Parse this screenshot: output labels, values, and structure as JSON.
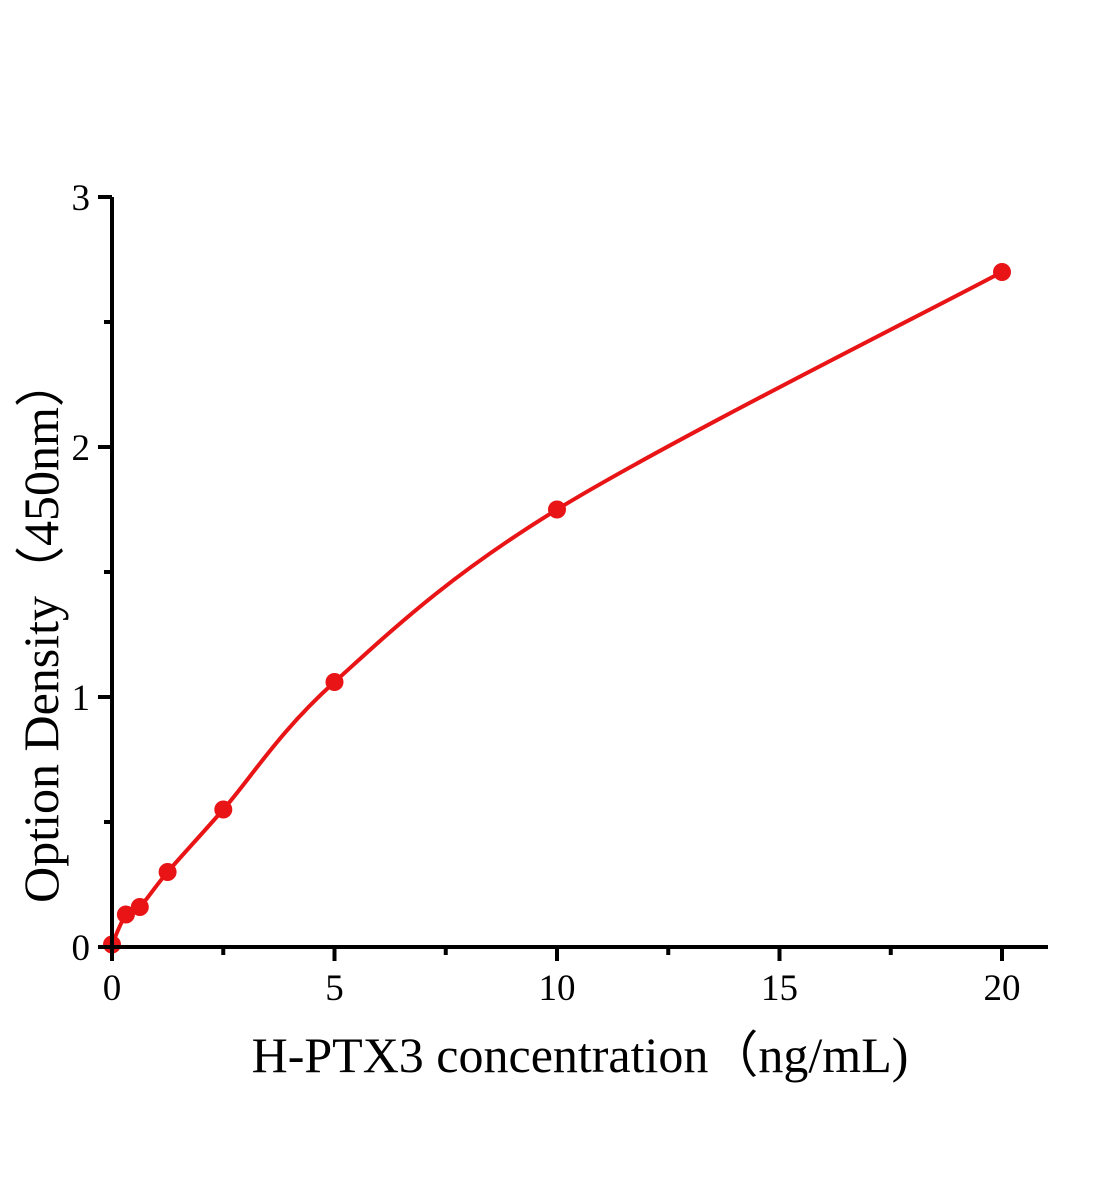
{
  "figure": {
    "background": "#ffffff",
    "text_color": "#000000"
  },
  "chart_data": {
    "type": "line",
    "title": "",
    "xlabel": "H-PTX3 concentration（ng/mL)",
    "ylabel": "Option Density（450nm）",
    "x": [
      0,
      0.3125,
      0.625,
      1.25,
      2.5,
      5,
      10,
      20
    ],
    "y": [
      0.01,
      0.13,
      0.16,
      0.3,
      0.55,
      1.06,
      1.75,
      2.7
    ],
    "xlim": [
      0,
      21
    ],
    "ylim": [
      0,
      3
    ],
    "x_major_ticks": [
      0,
      5,
      10,
      15,
      20
    ],
    "x_minor_ticks": [
      2.5,
      7.5,
      12.5,
      17.5
    ],
    "y_major_ticks": [
      0,
      1,
      2,
      3
    ],
    "y_minor_ticks": [
      0.5,
      1.5,
      2.5
    ],
    "grid": false,
    "legend": "none",
    "line_color": "#e81416",
    "marker": "circle",
    "marker_color": "#e81416",
    "axis_color": "#000000"
  }
}
